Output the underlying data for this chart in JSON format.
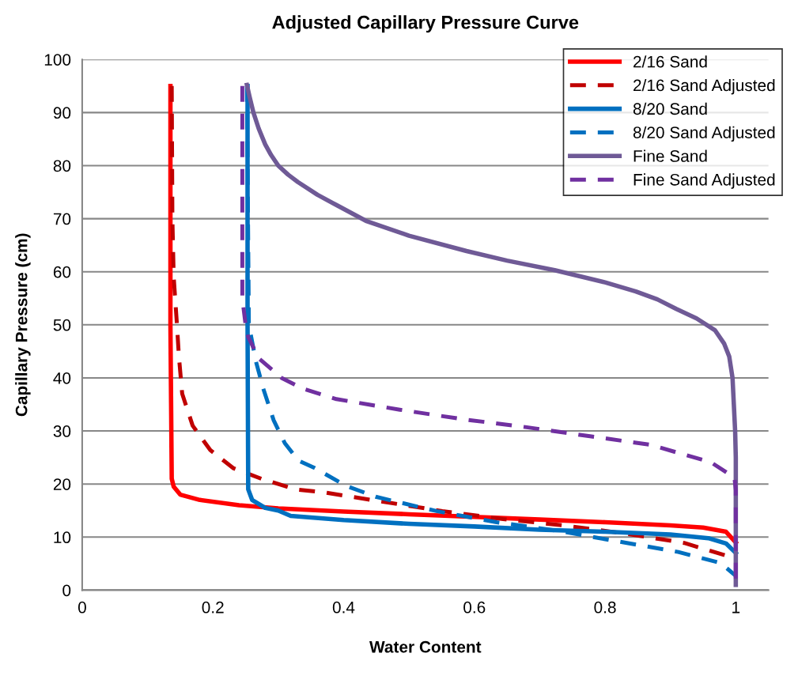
{
  "chart_data": {
    "type": "line",
    "title": "Adjusted Capillary Pressure Curve",
    "xlabel": "Water Content",
    "ylabel": "Capillary Pressure (cm)",
    "xlim": [
      0,
      1.05
    ],
    "ylim": [
      0,
      100
    ],
    "xticks": [
      0,
      0.2,
      0.4,
      0.6,
      0.8,
      1
    ],
    "yticks": [
      0,
      10,
      20,
      30,
      40,
      50,
      60,
      70,
      80,
      90,
      100
    ],
    "grid": "y",
    "legend": "top right",
    "marker": "none",
    "series": [
      {
        "name": "2/16 Sand",
        "color": "#ff0000",
        "line_style": "solid",
        "x": [
          0.135,
          0.135,
          0.137,
          0.14,
          0.15,
          0.18,
          0.24,
          0.3,
          0.4,
          0.5,
          0.6,
          0.7,
          0.8,
          0.9,
          0.95,
          0.985,
          1.0
        ],
        "values": [
          95,
          50,
          21,
          19.5,
          18,
          17,
          16,
          15.4,
          14.8,
          14.3,
          13.8,
          13.3,
          12.8,
          12.2,
          11.8,
          11,
          9
        ]
      },
      {
        "name": "2/16 Sand Adjusted",
        "color": "#c00000",
        "line_style": "dashed",
        "x": [
          0.137,
          0.138,
          0.14,
          0.145,
          0.148,
          0.153,
          0.169,
          0.196,
          0.231,
          0.274,
          0.326,
          0.366,
          0.458,
          0.551,
          0.644,
          0.736,
          0.829,
          0.921,
          0.991
        ],
        "values": [
          95,
          70,
          59,
          50,
          44,
          37,
          31,
          26.4,
          23,
          21,
          19,
          18.5,
          16.7,
          14.9,
          13.4,
          12.2,
          10.7,
          8.9,
          6.3
        ]
      },
      {
        "name": "8/20 Sand",
        "color": "#0070c0",
        "line_style": "solid",
        "x": [
          0.253,
          0.253,
          0.254,
          0.26,
          0.28,
          0.3,
          0.319,
          0.4,
          0.5,
          0.6,
          0.7,
          0.8,
          0.9,
          0.958,
          0.985,
          1.0
        ],
        "values": [
          95,
          50,
          19,
          17,
          15.5,
          15,
          14,
          13.2,
          12.5,
          12,
          11.4,
          11,
          10.5,
          9.8,
          8.8,
          7
        ]
      },
      {
        "name": "8/20 Sand Adjusted",
        "color": "#0070c0",
        "line_style": "dashed",
        "x": [
          0.252,
          0.255,
          0.266,
          0.277,
          0.293,
          0.31,
          0.331,
          0.356,
          0.403,
          0.449,
          0.542,
          0.634,
          0.727,
          0.819,
          0.912,
          0.977,
          1.0
        ],
        "values": [
          95,
          50,
          43,
          38,
          32,
          27.7,
          24.4,
          23,
          19.7,
          17.6,
          14.9,
          12.8,
          11.2,
          9.2,
          7.2,
          5.1,
          2.7
        ]
      },
      {
        "name": "Fine Sand",
        "color": "#6f5a96",
        "line_style": "solid",
        "x": [
          0.252,
          0.256,
          0.262,
          0.27,
          0.28,
          0.289,
          0.3,
          0.315,
          0.33,
          0.36,
          0.39,
          0.434,
          0.5,
          0.588,
          0.65,
          0.723,
          0.8,
          0.847,
          0.88,
          0.909,
          0.94,
          0.968,
          0.982,
          0.99,
          0.995,
          0.997,
          0.999,
          1.0,
          1.0
        ],
        "values": [
          95.2,
          93,
          90,
          87,
          84,
          82,
          80,
          78.3,
          76.9,
          74.5,
          72.5,
          69.6,
          66.8,
          63.9,
          62.1,
          60.3,
          58,
          56.3,
          54.8,
          53,
          51.2,
          49,
          46.5,
          44,
          40,
          35,
          30,
          25,
          1
        ]
      },
      {
        "name": "Fine Sand Adjusted",
        "color": "#7030a0",
        "line_style": "dashed",
        "x": [
          0.245,
          0.245,
          0.25,
          0.254,
          0.27,
          0.305,
          0.337,
          0.389,
          0.486,
          0.583,
          0.68,
          0.777,
          0.869,
          0.962,
          0.998,
          1.0,
          1.0
        ],
        "values": [
          95,
          55,
          50,
          47.7,
          43.7,
          40,
          38,
          36,
          34,
          32.2,
          30.7,
          29,
          27.4,
          24.1,
          21.2,
          18.8,
          1
        ]
      }
    ]
  }
}
